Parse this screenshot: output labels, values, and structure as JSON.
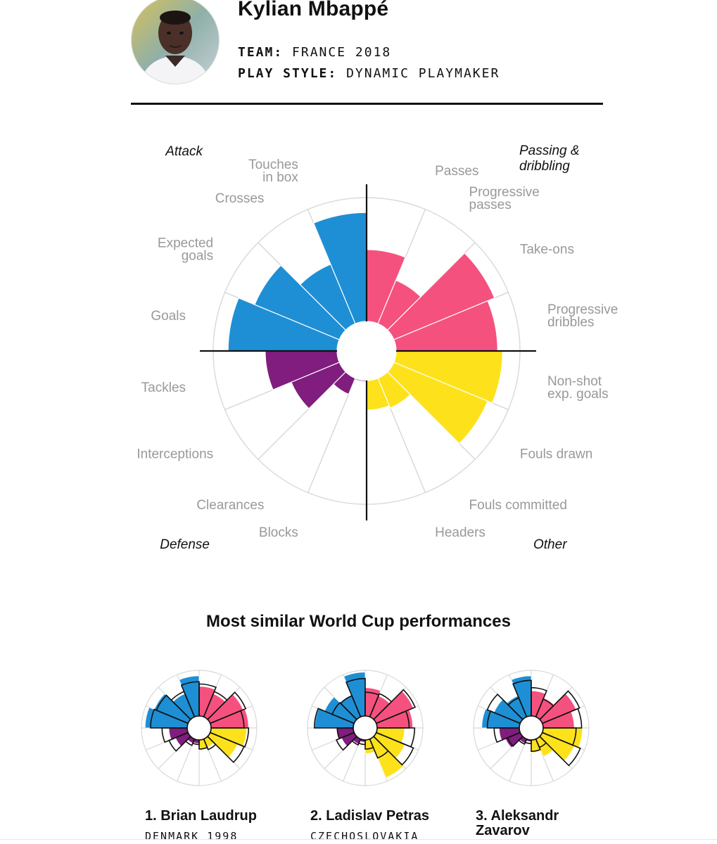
{
  "player": {
    "name": "Kylian Mbappé",
    "team_label": "TEAM:",
    "team": "FRANCE 2018",
    "style_label": "PLAY STYLE:",
    "style": "DYNAMIC PLAYMAKER"
  },
  "colors": {
    "attack": "#1e8fd5",
    "passing": "#f5517f",
    "other": "#fde21b",
    "defense": "#801d7e",
    "grid": "#d9d9d9",
    "axis": "#111111",
    "label": "#999999"
  },
  "chart_data": {
    "type": "polar-bar",
    "groups": [
      {
        "label": "Passing &\ndribbling",
        "color_key": "passing",
        "position": "top-right"
      },
      {
        "label": "Other",
        "color_key": "other",
        "position": "bottom-right"
      },
      {
        "label": "Defense",
        "color_key": "defense",
        "position": "bottom-left"
      },
      {
        "label": "Attack",
        "color_key": "attack",
        "position": "top-left"
      }
    ],
    "categories": [
      {
        "label": "Passes",
        "group": "passing",
        "value": 0.58
      },
      {
        "label": "Progressive\npasses",
        "group": "passing",
        "value": 0.38
      },
      {
        "label": "Take-ons",
        "group": "passing",
        "value": 0.88
      },
      {
        "label": "Progressive\ndribbles",
        "group": "passing",
        "value": 0.82
      },
      {
        "label": "Non-shot\nexp. goals",
        "group": "other",
        "value": 0.86
      },
      {
        "label": "Fouls drawn",
        "group": "other",
        "value": 0.82
      },
      {
        "label": "Fouls committed",
        "group": "other",
        "value": 0.26
      },
      {
        "label": "Headers",
        "group": "other",
        "value": 0.24
      },
      {
        "label": "Blocks",
        "group": "defense",
        "value": 0.01
      },
      {
        "label": "Clearances",
        "group": "defense",
        "value": 0.14
      },
      {
        "label": "Interceptions",
        "group": "defense",
        "value": 0.42
      },
      {
        "label": "Tackles",
        "group": "defense",
        "value": 0.58
      },
      {
        "label": "Goals",
        "group": "attack",
        "value": 0.88
      },
      {
        "label": "Expected\ngoals",
        "group": "attack",
        "value": 0.74
      },
      {
        "label": "Crosses",
        "group": "attack",
        "value": 0.52
      },
      {
        "label": "Touches\nin box",
        "group": "attack",
        "value": 0.88
      }
    ],
    "scale": [
      0,
      1
    ],
    "similar_title": "Most similar World Cup performances",
    "similar": [
      {
        "rank_name": "1. Brian Laudrup",
        "subtitle": "DENMARK 1998",
        "values": [
          0.65,
          0.55,
          0.78,
          0.82,
          0.78,
          0.65,
          0.2,
          0.22,
          0.08,
          0.1,
          0.3,
          0.4,
          0.92,
          0.8,
          0.55,
          0.88
        ],
        "outlines": [
          0.7,
          0.6,
          0.84,
          0.72,
          0.82,
          0.8,
          0.25,
          0.2,
          0.1,
          0.15,
          0.45,
          0.55,
          0.8,
          0.75,
          0.6,
          0.75
        ]
      },
      {
        "rank_name": "2. Ladislav Petras",
        "subtitle": "CZECHOSLOVAKIA",
        "values": [
          0.62,
          0.5,
          0.88,
          0.78,
          0.6,
          0.68,
          0.92,
          0.3,
          0.05,
          0.12,
          0.3,
          0.36,
          0.84,
          0.7,
          0.52,
          0.96
        ],
        "outlines": [
          0.52,
          0.55,
          0.92,
          0.7,
          0.82,
          0.88,
          0.45,
          0.2,
          0.1,
          0.14,
          0.42,
          0.35,
          0.85,
          0.52,
          0.5,
          0.82
        ]
      },
      {
        "rank_name": "3. Aleksandr\nZavarov",
        "subtitle": "",
        "values": [
          0.55,
          0.45,
          0.8,
          0.68,
          0.86,
          0.76,
          0.42,
          0.28,
          0.04,
          0.1,
          0.35,
          0.44,
          0.82,
          0.62,
          0.5,
          0.88
        ],
        "outlines": [
          0.62,
          0.42,
          0.88,
          0.84,
          0.72,
          0.9,
          0.2,
          0.25,
          0.08,
          0.12,
          0.3,
          0.55,
          0.7,
          0.78,
          0.45,
          0.78
        ]
      }
    ]
  }
}
